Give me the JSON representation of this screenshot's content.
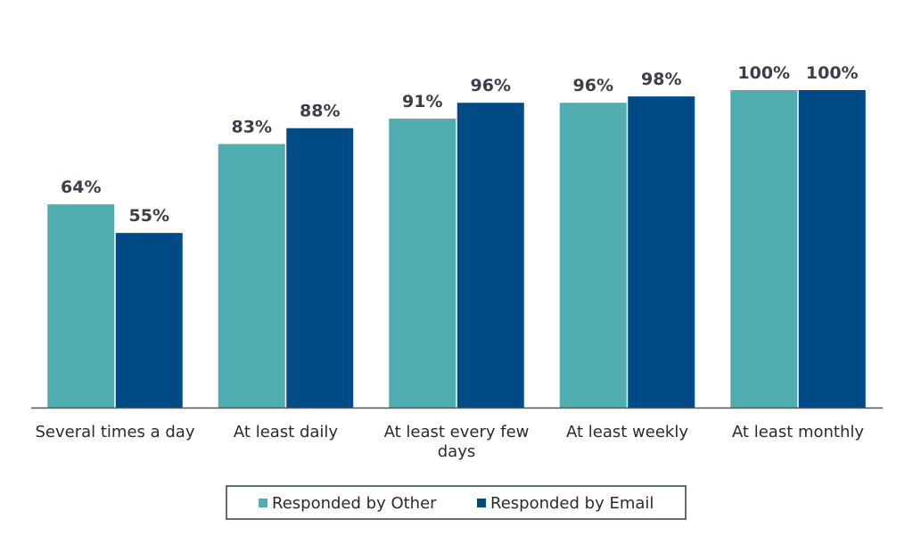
{
  "chart_data": {
    "type": "bar",
    "categories": [
      [
        "Several times a day"
      ],
      [
        "At least daily"
      ],
      [
        "At least every few",
        "days"
      ],
      [
        "At least weekly"
      ],
      [
        "At least monthly"
      ]
    ],
    "series": [
      {
        "name": "Responded by Other",
        "values": [
          64,
          83,
          91,
          96,
          100
        ],
        "labels": [
          "64%",
          "83%",
          "91%",
          "96%",
          "100%"
        ]
      },
      {
        "name": "Responded by Email",
        "values": [
          55,
          88,
          96,
          98,
          100
        ],
        "labels": [
          "55%",
          "88%",
          "96%",
          "98%",
          "100%"
        ]
      }
    ],
    "ylim": [
      0,
      100
    ],
    "grid": false,
    "legend_position": "bottom",
    "colors": {
      "series": [
        "#50AEB0",
        "#004A86"
      ],
      "axis": "#555555",
      "legend_border": "#2f3b4a"
    }
  }
}
